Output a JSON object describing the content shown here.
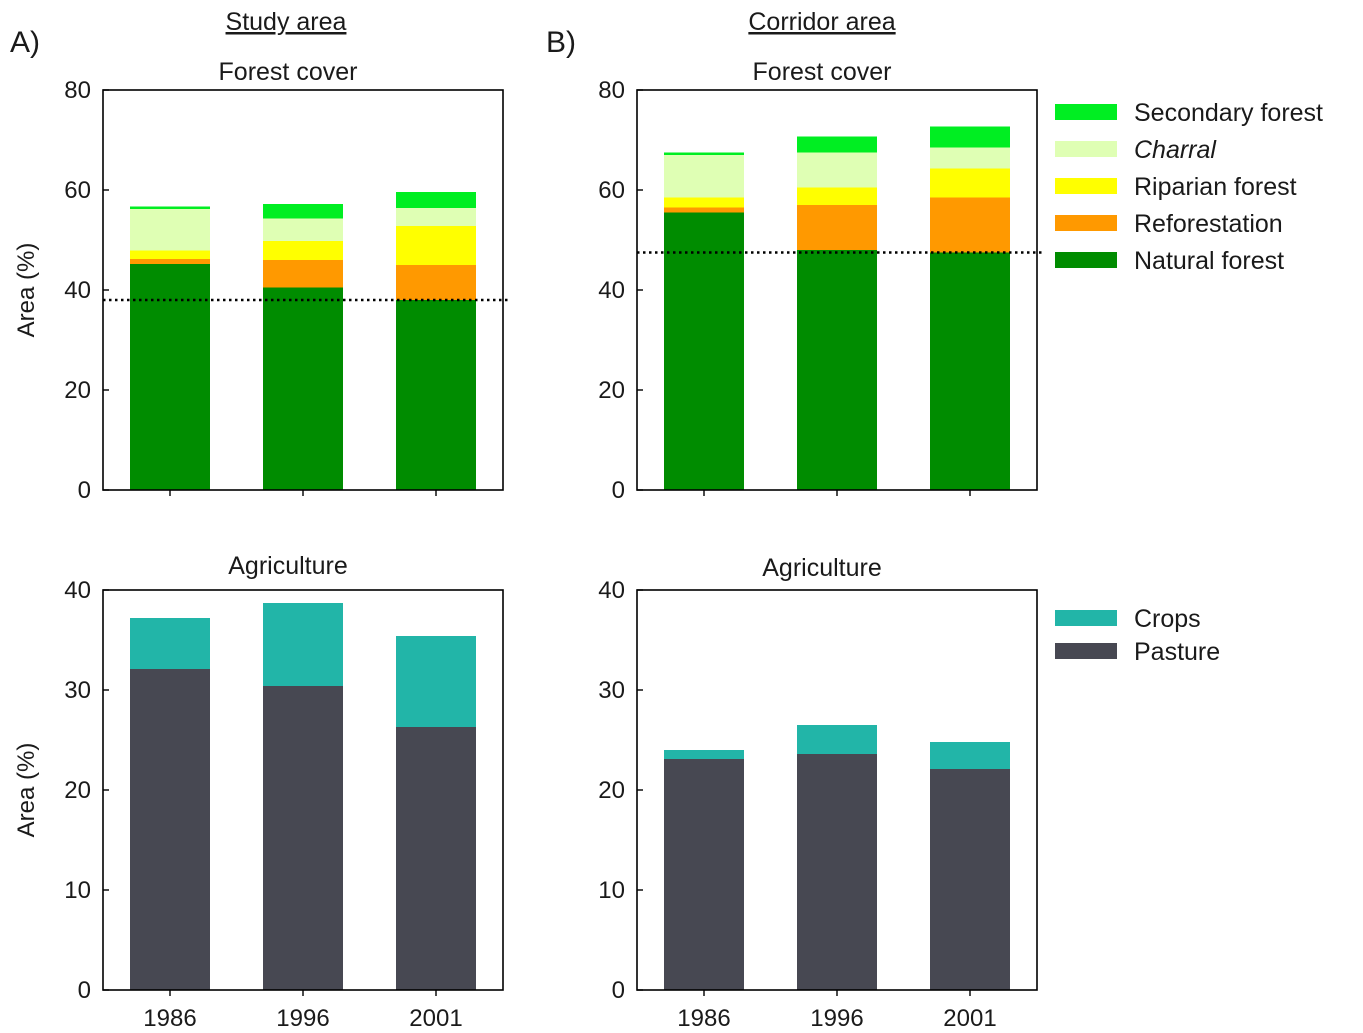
{
  "figure": {
    "column_titles": [
      "Study area",
      "Corridor area"
    ],
    "panel_letters": [
      "A)",
      "B)"
    ]
  },
  "colors": {
    "natural_forest": "#008c00",
    "reforestation": "#ff9900",
    "riparian_forest": "#ffff00",
    "charral": "#dfffb4",
    "secondary_forest": "#00ee22",
    "pasture": "#474852",
    "crops": "#22b5a8"
  },
  "legend_forest": [
    {
      "key": "secondary_forest",
      "label": "Secondary forest",
      "italic": false
    },
    {
      "key": "charral",
      "label": "Charral",
      "italic": true
    },
    {
      "key": "riparian_forest",
      "label": "Riparian forest",
      "italic": false
    },
    {
      "key": "reforestation",
      "label": "Reforestation",
      "italic": false
    },
    {
      "key": "natural_forest",
      "label": "Natural forest",
      "italic": false
    }
  ],
  "legend_agri": [
    {
      "key": "crops",
      "label": "Crops",
      "italic": false
    },
    {
      "key": "pasture",
      "label": "Pasture",
      "italic": false
    }
  ],
  "chart_data": [
    {
      "type": "bar",
      "stacked": true,
      "title": "Forest cover",
      "ylabel": "Area (%)",
      "xlabel": "",
      "categories": [
        "1986",
        "1996",
        "2001"
      ],
      "ylim": [
        0,
        80
      ],
      "yticks": [
        0,
        20,
        40,
        60,
        80
      ],
      "reference_line": 38,
      "show_xticks": false,
      "series": [
        {
          "name": "Natural forest",
          "key": "natural_forest",
          "values": [
            45.2,
            40.5,
            38.0
          ]
        },
        {
          "name": "Reforestation",
          "key": "reforestation",
          "values": [
            1.0,
            5.5,
            7.0
          ]
        },
        {
          "name": "Riparian forest",
          "key": "riparian_forest",
          "values": [
            1.7,
            3.8,
            7.8
          ]
        },
        {
          "name": "Charral",
          "key": "charral",
          "values": [
            8.3,
            4.5,
            3.6
          ]
        },
        {
          "name": "Secondary forest",
          "key": "secondary_forest",
          "values": [
            0.5,
            2.9,
            3.2
          ]
        }
      ]
    },
    {
      "type": "bar",
      "stacked": true,
      "title": "Forest cover",
      "ylabel": "",
      "xlabel": "",
      "categories": [
        "1986",
        "1996",
        "2001"
      ],
      "ylim": [
        0,
        80
      ],
      "yticks": [
        0,
        20,
        40,
        60,
        80
      ],
      "reference_line": 47.5,
      "show_xticks": false,
      "series": [
        {
          "name": "Natural forest",
          "key": "natural_forest",
          "values": [
            55.5,
            48.0,
            47.5
          ]
        },
        {
          "name": "Reforestation",
          "key": "reforestation",
          "values": [
            1.0,
            9.0,
            11.0
          ]
        },
        {
          "name": "Riparian forest",
          "key": "riparian_forest",
          "values": [
            2.0,
            3.5,
            5.8
          ]
        },
        {
          "name": "Charral",
          "key": "charral",
          "values": [
            8.5,
            7.0,
            4.2
          ]
        },
        {
          "name": "Secondary forest",
          "key": "secondary_forest",
          "values": [
            0.5,
            3.2,
            4.2
          ]
        }
      ]
    },
    {
      "type": "bar",
      "stacked": true,
      "title": "Agriculture",
      "ylabel": "Area (%)",
      "xlabel": "",
      "categories": [
        "1986",
        "1996",
        "2001"
      ],
      "ylim": [
        0,
        40
      ],
      "yticks": [
        0,
        10,
        20,
        30,
        40
      ],
      "reference_line": null,
      "show_xticks": true,
      "series": [
        {
          "name": "Pasture",
          "key": "pasture",
          "values": [
            32.1,
            30.4,
            26.3
          ]
        },
        {
          "name": "Crops",
          "key": "crops",
          "values": [
            5.1,
            8.3,
            9.1
          ]
        }
      ]
    },
    {
      "type": "bar",
      "stacked": true,
      "title": "Agriculture",
      "ylabel": "",
      "xlabel": "",
      "categories": [
        "1986",
        "1996",
        "2001"
      ],
      "ylim": [
        0,
        40
      ],
      "yticks": [
        0,
        10,
        20,
        30,
        40
      ],
      "reference_line": null,
      "show_xticks": true,
      "series": [
        {
          "name": "Pasture",
          "key": "pasture",
          "values": [
            23.1,
            23.6,
            22.1
          ]
        },
        {
          "name": "Crops",
          "key": "crops",
          "values": [
            0.9,
            2.9,
            2.7
          ]
        }
      ]
    }
  ]
}
